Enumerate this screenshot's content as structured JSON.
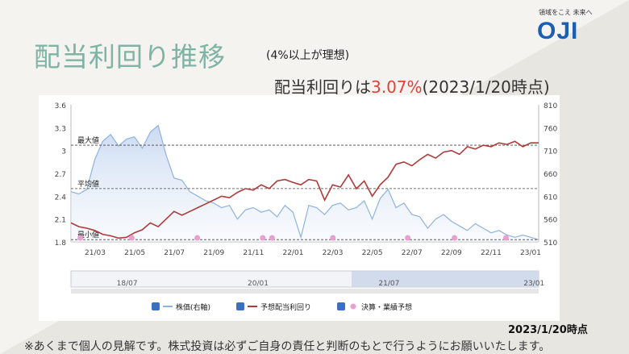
{
  "header": {
    "title": "配当利回り推移",
    "subnote": "(4%以上が理想)",
    "yield_prefix": "配当利回りは",
    "yield_value": "3.07%",
    "yield_suffix": "(2023/1/20時点)"
  },
  "logo": {
    "tagline": "領域をこえ 未来へ",
    "wordmark": "OJI"
  },
  "footer": {
    "date_note": "2023/1/20時点",
    "disclaimer": "※あくまで個人の見解です。株式投資は必ずご自身の責任と判断のもとで行うようにお願いいたします。"
  },
  "colors": {
    "price": "#8fb3e0",
    "yield": "#b03a3a",
    "event": "#e8a0d0",
    "title": "#7fb3a5",
    "highlight": "#e0403a"
  },
  "chart_data": {
    "type": "line",
    "x_tick_labels": [
      "21/03",
      "21/05",
      "21/07",
      "21/09",
      "21/11",
      "22/01",
      "22/03",
      "22/05",
      "22/07",
      "22/09",
      "22/11",
      "23/01"
    ],
    "y_left": {
      "ticks": [
        1.8,
        2.1,
        2.4,
        2.7,
        3,
        3.3,
        3.6
      ],
      "range": [
        1.8,
        3.6
      ]
    },
    "y_right": {
      "ticks": [
        510,
        560,
        610,
        660,
        710,
        760,
        810
      ],
      "range": [
        510,
        810
      ]
    },
    "reference_lines": [
      {
        "label": "最大値",
        "value": 3.07
      },
      {
        "label": "平均値",
        "value": 2.5
      },
      {
        "label": "最小値",
        "value": 1.83
      }
    ],
    "series": [
      {
        "name": "株価(右軸)",
        "axis": "right",
        "values": [
          620,
          615,
          625,
          690,
          730,
          745,
          720,
          735,
          740,
          715,
          750,
          765,
          700,
          650,
          645,
          620,
          610,
          600,
          595,
          585,
          590,
          560,
          580,
          585,
          575,
          580,
          565,
          590,
          575,
          520,
          590,
          585,
          570,
          590,
          595,
          580,
          585,
          600,
          560,
          605,
          625,
          585,
          595,
          570,
          565,
          540,
          560,
          570,
          555,
          545,
          535,
          550,
          540,
          530,
          535,
          525,
          520,
          525,
          520,
          515
        ]
      },
      {
        "name": "予想配当利回り",
        "axis": "left",
        "values": [
          2.05,
          2.0,
          1.98,
          1.95,
          1.9,
          1.88,
          1.85,
          1.86,
          1.92,
          1.96,
          2.05,
          2.0,
          2.1,
          2.2,
          2.15,
          2.2,
          2.25,
          2.3,
          2.35,
          2.4,
          2.38,
          2.45,
          2.5,
          2.48,
          2.55,
          2.5,
          2.6,
          2.62,
          2.58,
          2.55,
          2.62,
          2.6,
          2.35,
          2.55,
          2.52,
          2.68,
          2.5,
          2.6,
          2.4,
          2.55,
          2.65,
          2.82,
          2.85,
          2.8,
          2.88,
          2.95,
          2.9,
          2.98,
          3.0,
          2.95,
          3.05,
          3.02,
          3.07,
          3.05,
          3.1,
          3.08,
          3.12,
          3.05,
          3.1,
          3.1
        ]
      }
    ],
    "events": {
      "name": "決算・業績予想",
      "positions": [
        0.02,
        0.13,
        0.27,
        0.41,
        0.43,
        0.56,
        0.72,
        0.82,
        0.93
      ]
    },
    "navigator": {
      "labels": [
        "18/07",
        "20/01",
        "21/07",
        "23/01"
      ]
    },
    "legend": {
      "placement": "bottom"
    }
  }
}
